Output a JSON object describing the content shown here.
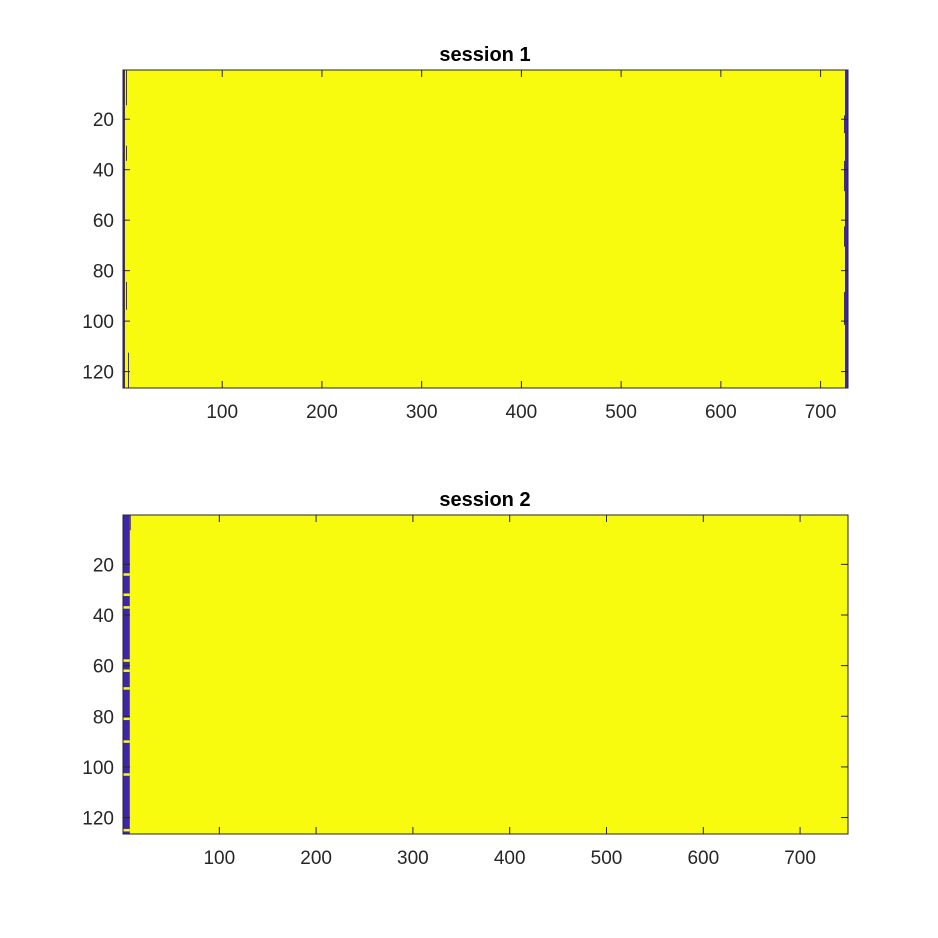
{
  "figure": {
    "background": "#ffffff"
  },
  "chart_data": [
    {
      "type": "heatmap",
      "title": "session 1",
      "xlabel": "",
      "ylabel": "",
      "xlim": [
        0.5,
        727.5
      ],
      "ylim": [
        0.5,
        126.5
      ],
      "y_reversed": true,
      "xticks": [
        100,
        200,
        300,
        400,
        500,
        600,
        700
      ],
      "yticks": [
        20,
        40,
        60,
        80,
        100,
        120
      ],
      "colors": {
        "fill": "#f9fb0e",
        "empty": "#3e26a8"
      },
      "fill_value_description": "binary map",
      "strips": [
        {
          "x0": 0.5,
          "x1": 2.5,
          "y0": 0.5,
          "y1": 126.5,
          "value": 0
        },
        {
          "x0": 3.5,
          "x1": 4.5,
          "y0": 0.5,
          "y1": 14.5,
          "value": 0
        },
        {
          "x0": 3.5,
          "x1": 4.5,
          "y0": 30.5,
          "y1": 36.5,
          "value": 0
        },
        {
          "x0": 3.5,
          "x1": 4.5,
          "y0": 84.5,
          "y1": 95.5,
          "value": 0
        },
        {
          "x0": 5.5,
          "x1": 6.5,
          "y0": 112.5,
          "y1": 126.5,
          "value": 0
        },
        {
          "x0": 724.5,
          "x1": 727.5,
          "y0": 0.5,
          "y1": 126.5,
          "value": 0
        },
        {
          "x0": 723.5,
          "x1": 724.5,
          "y0": 18.5,
          "y1": 25.5,
          "value": 0
        },
        {
          "x0": 723.5,
          "x1": 724.5,
          "y0": 36.5,
          "y1": 48.5,
          "value": 0
        },
        {
          "x0": 723.5,
          "x1": 724.5,
          "y0": 62.5,
          "y1": 70.5,
          "value": 0
        },
        {
          "x0": 723.5,
          "x1": 724.5,
          "y0": 88.5,
          "y1": 101.5,
          "value": 0
        }
      ]
    },
    {
      "type": "heatmap",
      "title": "session 2",
      "xlabel": "",
      "ylabel": "",
      "xlim": [
        0.5,
        749.5
      ],
      "ylim": [
        0.5,
        126.5
      ],
      "y_reversed": true,
      "xticks": [
        100,
        200,
        300,
        400,
        500,
        600,
        700
      ],
      "yticks": [
        20,
        40,
        60,
        80,
        100,
        120
      ],
      "colors": {
        "fill": "#f9fb0e",
        "empty": "#3e26a8"
      },
      "fill_value_description": "binary map",
      "strips": [
        {
          "x0": 0.5,
          "x1": 7.5,
          "y0": 0.5,
          "y1": 126.5,
          "value": 0
        },
        {
          "x0": 7.5,
          "x1": 8.5,
          "y0": 0.5,
          "y1": 6.5,
          "value": 0
        },
        {
          "x0": 0.5,
          "x1": 7.5,
          "y0": 23.5,
          "y1": 24.5,
          "value": 1
        },
        {
          "x0": 0.5,
          "x1": 7.5,
          "y0": 31.5,
          "y1": 32.5,
          "value": 1
        },
        {
          "x0": 0.5,
          "x1": 7.5,
          "y0": 36.5,
          "y1": 37.5,
          "value": 1
        },
        {
          "x0": 0.5,
          "x1": 7.5,
          "y0": 57.5,
          "y1": 58.5,
          "value": 1
        },
        {
          "x0": 0.5,
          "x1": 7.5,
          "y0": 61.5,
          "y1": 62.5,
          "value": 1
        },
        {
          "x0": 0.5,
          "x1": 7.5,
          "y0": 68.5,
          "y1": 69.5,
          "value": 1
        },
        {
          "x0": 0.5,
          "x1": 7.5,
          "y0": 80.5,
          "y1": 81.5,
          "value": 1
        },
        {
          "x0": 0.5,
          "x1": 7.5,
          "y0": 89.5,
          "y1": 90.5,
          "value": 1
        },
        {
          "x0": 0.5,
          "x1": 7.5,
          "y0": 102.5,
          "y1": 103.5,
          "value": 1
        },
        {
          "x0": 0.5,
          "x1": 7.5,
          "y0": 124.5,
          "y1": 125.5,
          "value": 1
        }
      ]
    }
  ]
}
